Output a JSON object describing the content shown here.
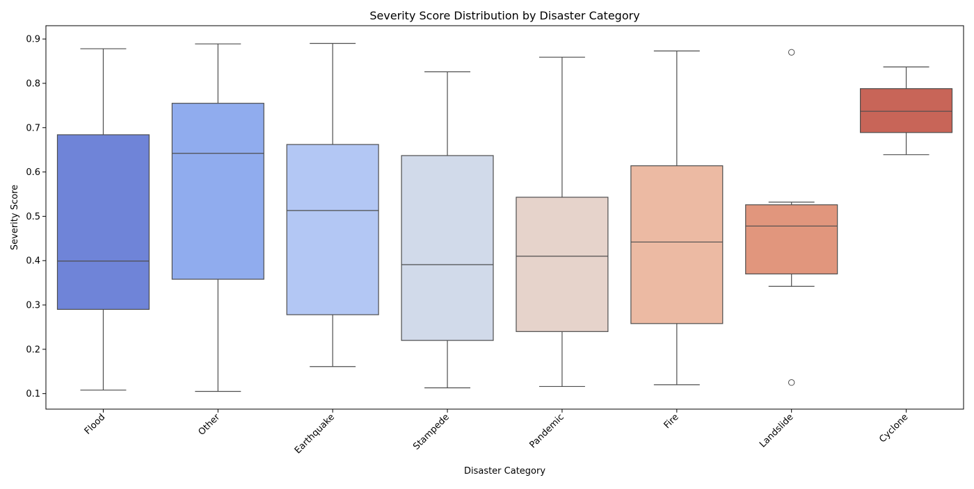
{
  "chart_data": {
    "type": "box",
    "title": "Severity Score Distribution by Disaster Category",
    "xlabel": "Disaster Category",
    "ylabel": "Severity Score",
    "ylim": [
      0.065,
      0.93
    ],
    "yticks": [
      "0.1",
      "0.2",
      "0.3",
      "0.4",
      "0.5",
      "0.6",
      "0.7",
      "0.8",
      "0.9"
    ],
    "grid": false,
    "legend": "none",
    "categories": [
      "Flood",
      "Other",
      "Earthquake",
      "Stampede",
      "Pandemic",
      "Fire",
      "Landslide",
      "Cyclone"
    ],
    "colors": [
      "#6f84d8",
      "#90acee",
      "#b3c7f4",
      "#d1daea",
      "#e6d3cb",
      "#ecbaa3",
      "#e1967d",
      "#c86558"
    ],
    "edge_color": "#4d4d4d",
    "boxes": [
      {
        "category": "Flood",
        "whislo": 0.108,
        "q1": 0.29,
        "median": 0.399,
        "q3": 0.684,
        "whishi": 0.878,
        "fliers": []
      },
      {
        "category": "Other",
        "whislo": 0.105,
        "q1": 0.358,
        "median": 0.642,
        "q3": 0.755,
        "whishi": 0.889,
        "fliers": []
      },
      {
        "category": "Earthquake",
        "whislo": 0.161,
        "q1": 0.278,
        "median": 0.513,
        "q3": 0.662,
        "whishi": 0.89,
        "fliers": []
      },
      {
        "category": "Stampede",
        "whislo": 0.113,
        "q1": 0.22,
        "median": 0.391,
        "q3": 0.637,
        "whishi": 0.826,
        "fliers": []
      },
      {
        "category": "Pandemic",
        "whislo": 0.116,
        "q1": 0.24,
        "median": 0.41,
        "q3": 0.543,
        "whishi": 0.859,
        "fliers": []
      },
      {
        "category": "Fire",
        "whislo": 0.12,
        "q1": 0.258,
        "median": 0.442,
        "q3": 0.614,
        "whishi": 0.873,
        "fliers": []
      },
      {
        "category": "Landslide",
        "whislo": 0.342,
        "q1": 0.37,
        "median": 0.478,
        "q3": 0.526,
        "whishi": 0.532,
        "fliers": [
          0.87,
          0.125
        ]
      },
      {
        "category": "Cyclone",
        "whislo": 0.639,
        "q1": 0.689,
        "median": 0.737,
        "q3": 0.788,
        "whishi": 0.837,
        "fliers": []
      }
    ]
  }
}
